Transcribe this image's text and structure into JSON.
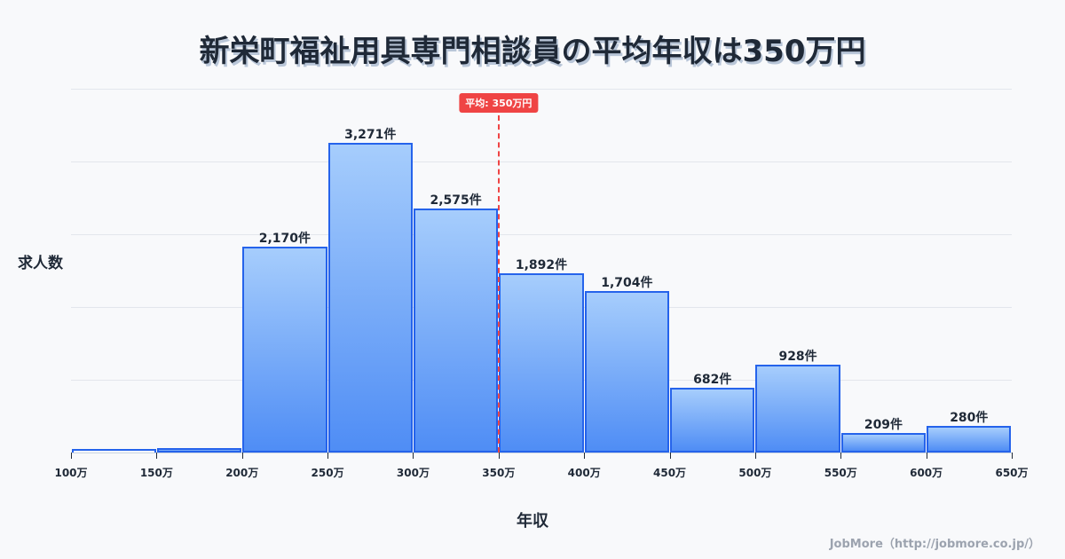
{
  "title": "新栄町福祉用具専門相談員の平均年収は350万円",
  "axis": {
    "ylabel": "求人数",
    "xlabel": "年収"
  },
  "average": {
    "label": "平均: 350万円",
    "value": 350,
    "color": "#ef4444"
  },
  "footer": "JobMore（http://jobmore.co.jp/）",
  "colors": {
    "bar_top": "#a6cdfc",
    "bar_bottom": "#4f8df5",
    "bar_border": "#2563eb",
    "background": "#f8f9fb",
    "gridline": "#e3e6ec"
  },
  "chart_data": {
    "type": "bar",
    "title": "新栄町福祉用具専門相談員の平均年収は350万円",
    "xlabel": "年収",
    "ylabel": "求人数",
    "categories": [
      "100万-150万",
      "150万-200万",
      "200万-250万",
      "250万-300万",
      "300万-350万",
      "350万-400万",
      "400万-450万",
      "450万-500万",
      "500万-550万",
      "550万-600万",
      "600万-650万"
    ],
    "values": [
      25,
      50,
      2170,
      3271,
      2575,
      1892,
      1704,
      682,
      928,
      209,
      280
    ],
    "value_labels": [
      "",
      "",
      "2,170件",
      "3,271件",
      "2,575件",
      "1,892件",
      "1,704件",
      "682件",
      "928件",
      "209件",
      "280件"
    ],
    "x_ticks": [
      "100万",
      "150万",
      "200万",
      "250万",
      "300万",
      "350万",
      "400万",
      "450万",
      "500万",
      "550万",
      "600万",
      "650万"
    ],
    "ylim": [
      0,
      3843
    ],
    "grid": true,
    "y_gridlines": 5,
    "annotations": [
      {
        "type": "vline",
        "x": 350,
        "label": "平均: 350万円"
      }
    ]
  }
}
